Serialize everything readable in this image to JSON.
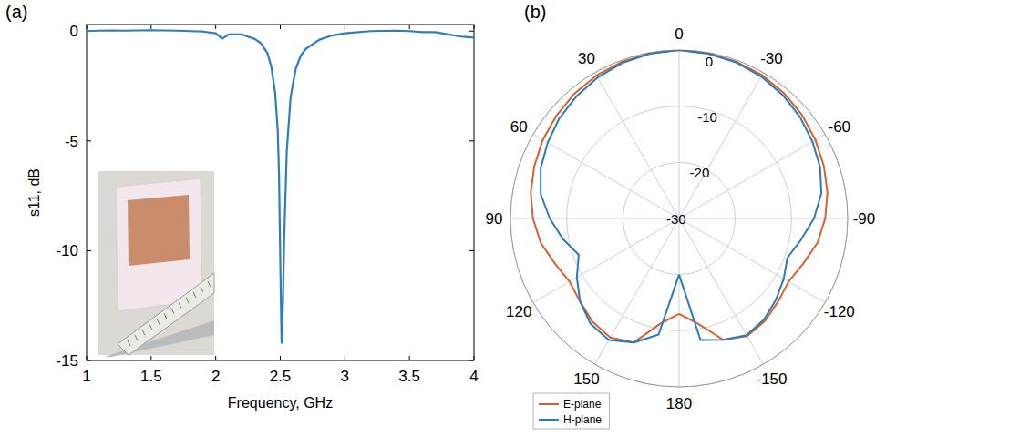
{
  "chart_data": [
    {
      "type": "line",
      "title": "(a)",
      "x_label": "Frequency, GHz",
      "y_label": "s11, dB",
      "x": [
        1,
        1.1,
        1.2,
        1.3,
        1.4,
        1.5,
        1.6,
        1.7,
        1.8,
        1.9,
        2.0,
        2.05,
        2.1,
        2.2,
        2.3,
        2.35,
        2.4,
        2.43,
        2.46,
        2.48,
        2.49,
        2.5,
        2.51,
        2.52,
        2.53,
        2.55,
        2.58,
        2.62,
        2.66,
        2.7,
        2.8,
        2.9,
        3.0,
        3.2,
        3.4,
        3.5,
        3.6,
        3.7,
        3.8,
        3.9,
        4.0
      ],
      "series": [
        {
          "color": "#2e7dbf",
          "values": [
            0.0,
            0.02,
            0.03,
            0.02,
            0.03,
            0.04,
            0.03,
            0.02,
            0.0,
            -0.02,
            -0.1,
            -0.35,
            -0.15,
            -0.15,
            -0.35,
            -0.55,
            -1.0,
            -1.6,
            -2.8,
            -4.5,
            -6.5,
            -10.5,
            -14.2,
            -12.5,
            -9.5,
            -5.5,
            -3.0,
            -1.7,
            -1.1,
            -0.8,
            -0.4,
            -0.2,
            -0.1,
            0.0,
            0.02,
            0.0,
            -0.05,
            -0.05,
            -0.15,
            -0.25,
            -0.3
          ]
        }
      ],
      "xlim": [
        1,
        4
      ],
      "xticks": [
        1,
        1.5,
        2,
        2.5,
        3,
        3.5,
        4
      ],
      "ylim": [
        -15,
        0.3
      ],
      "yticks": [
        -15,
        -10,
        -5,
        0
      ],
      "grid": false
    },
    {
      "type": "polar",
      "title": "(b)",
      "x": [
        -180,
        -170,
        -160,
        -150,
        -140,
        -130,
        -120,
        -110,
        -100,
        -90,
        -80,
        -70,
        -60,
        -50,
        -40,
        -30,
        -20,
        -10,
        0,
        10,
        20,
        30,
        40,
        50,
        60,
        70,
        80,
        90,
        100,
        110,
        120,
        130,
        140,
        150,
        160,
        170,
        180
      ],
      "series": [
        {
          "name": "E-plane",
          "color": "#d95f2b",
          "values": [
            -13,
            -11,
            -7,
            -5.8,
            -6.2,
            -7,
            -7.5,
            -6.5,
            -5,
            -4,
            -3.2,
            -2.6,
            -2,
            -1.4,
            -0.9,
            -0.5,
            -0.3,
            -0.1,
            0,
            -0.1,
            -0.3,
            -0.6,
            -1,
            -1.5,
            -2,
            -2.6,
            -3.2,
            -4,
            -5,
            -6.5,
            -7.5,
            -7,
            -6,
            -5.5,
            -6.5,
            -11,
            -13
          ]
        },
        {
          "name": "H-plane",
          "color": "#2b7bba",
          "values": [
            -20,
            -8,
            -7,
            -6,
            -6.5,
            -7.5,
            -8.5,
            -9.5,
            -8,
            -6,
            -4.3,
            -3.3,
            -2.6,
            -1.9,
            -1.3,
            -0.8,
            -0.4,
            -0.2,
            0,
            -0.2,
            -0.5,
            -1,
            -1.6,
            -2.2,
            -3,
            -3.8,
            -5,
            -7,
            -9,
            -11,
            -9,
            -7,
            -5.5,
            -5,
            -6.5,
            -9,
            -20
          ]
        }
      ],
      "xlim": [
        -180,
        180
      ],
      "xticks": [
        0,
        30,
        60,
        90,
        120,
        150,
        180,
        -150,
        -120,
        -90,
        -60,
        -30
      ],
      "ylim": [
        -30,
        0
      ],
      "yticks": [
        -30,
        -20,
        -10,
        0
      ],
      "grid": true,
      "legend": "lower left"
    }
  ]
}
